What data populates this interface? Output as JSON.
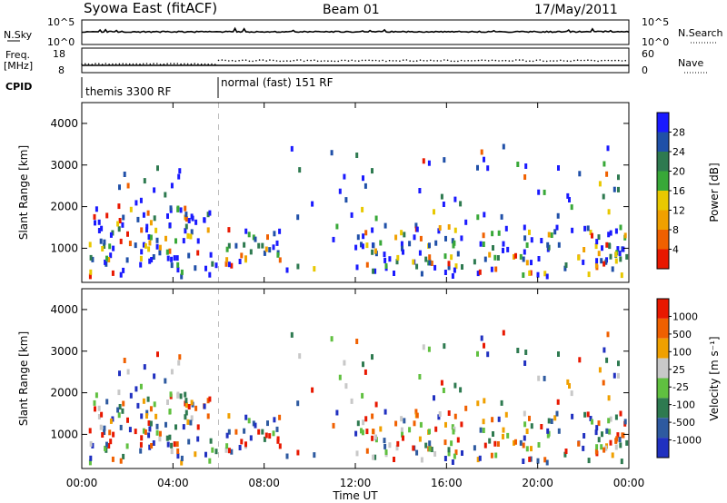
{
  "header": {
    "station": "Syowa East (fitACF)",
    "beam": "Beam 01",
    "date": "17/May/2011"
  },
  "noise_panel": {
    "left_label": "N.Sky",
    "left_ticks": [
      "10^5",
      "10^0"
    ],
    "right_label": "N.Search",
    "right_ticks": [
      "10^5",
      "10^0"
    ]
  },
  "freq_panel": {
    "left_label_line1": "Freq.",
    "left_label_line2": "[MHz]",
    "left_ticks": [
      "18",
      "8"
    ],
    "right_label": "Nave",
    "right_ticks": [
      "60",
      "0"
    ]
  },
  "cpid_panel": {
    "label": "CPID",
    "modes": [
      "themis 3300 RF",
      "normal (fast) 151 RF"
    ]
  },
  "power_panel": {
    "ylabel": "Slant Range [km]",
    "yticks": [
      "4000",
      "3000",
      "2000",
      "1000"
    ],
    "colorbar_label": "Power [dB]",
    "colorbar_ticks": [
      "28",
      "24",
      "20",
      "16",
      "12",
      "8",
      "4"
    ]
  },
  "velocity_panel": {
    "ylabel": "Slant Range [km]",
    "yticks": [
      "4000",
      "3000",
      "2000",
      "1000"
    ],
    "colorbar_label": "Velocity [m s⁻¹]",
    "colorbar_ticks": [
      "1000",
      "500",
      "100",
      "25",
      "-25",
      "-100",
      "-500",
      "-1000"
    ]
  },
  "xaxis": {
    "label": "Time UT",
    "ticks": [
      "00:00",
      "04:00",
      "08:00",
      "12:00",
      "16:00",
      "20:00",
      "00:00"
    ]
  },
  "chart_data": {
    "type": "heatmap",
    "title": "Syowa East (fitACF) Beam 01 17/May/2011",
    "xlabel": "Time UT",
    "ylabel": "Slant Range [km]",
    "xlim_hours": [
      0,
      24
    ],
    "ylim_km": [
      180,
      4500
    ],
    "mode_change_hour": 6,
    "power_colorscale": [
      "#1a1aff",
      "#2050a8",
      "#2e7a50",
      "#38a838",
      "#e8c800",
      "#f0a000",
      "#f06000",
      "#e81800"
    ],
    "power_range_db": [
      0,
      30
    ],
    "velocity_colorscale": [
      "#2030c0",
      "#2e5aa0",
      "#2e7a50",
      "#60c040",
      "#c8c8c8",
      "#f0a000",
      "#f06000",
      "#e81800"
    ],
    "velocity_range_ms": [
      -1000,
      1000
    ],
    "echo_regions": [
      {
        "t": [
          0.3,
          5.9
        ],
        "r": [
          250,
          1900
        ],
        "density": 0.55
      },
      {
        "t": [
          1.0,
          4.5
        ],
        "r": [
          1900,
          3000
        ],
        "density": 0.15
      },
      {
        "t": [
          6.2,
          8.8
        ],
        "r": [
          500,
          1400
        ],
        "density": 0.6
      },
      {
        "t": [
          8.8,
          11.8
        ],
        "r": [
          300,
          3400
        ],
        "density": 0.07
      },
      {
        "t": [
          11.8,
          13.6
        ],
        "r": [
          250,
          1500
        ],
        "density": 0.5
      },
      {
        "t": [
          12.0,
          13.0
        ],
        "r": [
          1500,
          3400
        ],
        "density": 0.15
      },
      {
        "t": [
          13.6,
          24.0
        ],
        "r": [
          250,
          1500
        ],
        "density": 0.45
      },
      {
        "t": [
          14.5,
          23.5
        ],
        "r": [
          1500,
          3400
        ],
        "density": 0.1
      },
      {
        "t": [
          22.5,
          24.0
        ],
        "r": [
          500,
          1100
        ],
        "density": 0.6
      }
    ]
  }
}
